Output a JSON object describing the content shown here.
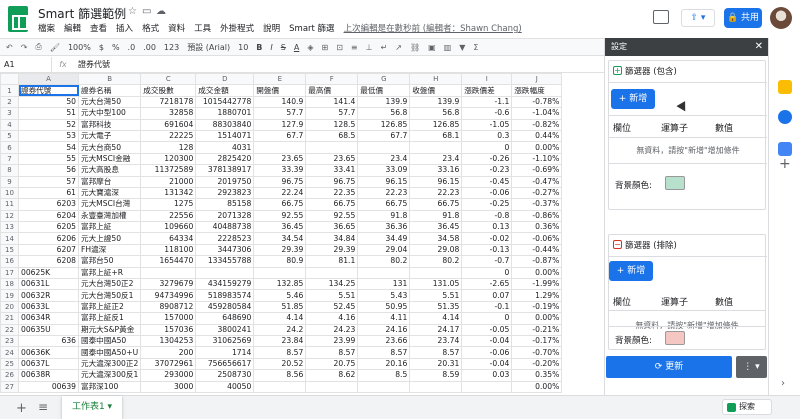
{
  "app": {
    "title": "Smart 篩選範例",
    "menus": [
      "檔案",
      "編輯",
      "查看",
      "插入",
      "格式",
      "資料",
      "工具",
      "外掛程式",
      "說明",
      "Smart 篩選"
    ],
    "last_edit": "上次編輯是在數秒前 (編輯者：Shawn Chang)",
    "share_label": "共用"
  },
  "toolbar": {
    "zoom": "100%",
    "currency": "$",
    "percent": "%",
    "dec1": ".0",
    "dec2": ".00",
    "numfmt": "123",
    "font": "預設 (Arial)",
    "font_size": "10",
    "bold": "B",
    "italic": "I",
    "strike": "S",
    "textcolor": "A"
  },
  "formula": {
    "cell": "A1",
    "fx": "fx",
    "value": "證券代號"
  },
  "grid": {
    "columns": [
      "A",
      "B",
      "C",
      "D",
      "E",
      "F",
      "G",
      "H",
      "I",
      "J"
    ],
    "rows": [
      [
        "1",
        "證券代號",
        "證券名稱",
        "成交股數",
        "成交金額",
        "開盤價",
        "最高價",
        "最低價",
        "收盤價",
        "漲跌價差",
        "漲跌幅度"
      ],
      [
        "2",
        "50",
        "元大台灣50",
        "7218178",
        "1015442778",
        "140.9",
        "141.4",
        "139.9",
        "139.9",
        "-1.1",
        "-0.78%"
      ],
      [
        "3",
        "51",
        "元大中型100",
        "32858",
        "1880701",
        "57.7",
        "57.7",
        "56.8",
        "56.8",
        "-0.6",
        "-1.04%"
      ],
      [
        "4",
        "52",
        "富邦科技",
        "691604",
        "88303840",
        "127.9",
        "128.5",
        "126.85",
        "126.85",
        "-1.05",
        "-0.82%"
      ],
      [
        "5",
        "53",
        "元大電子",
        "22225",
        "1514071",
        "67.7",
        "68.5",
        "67.7",
        "68.1",
        "0.3",
        "0.44%"
      ],
      [
        "6",
        "54",
        "元大台商50",
        "128",
        "4031",
        "",
        "",
        "",
        "",
        "0",
        "0.00%"
      ],
      [
        "7",
        "55",
        "元大MSCI金融",
        "120300",
        "2825420",
        "23.65",
        "23.65",
        "23.4",
        "23.4",
        "-0.26",
        "-1.10%"
      ],
      [
        "8",
        "56",
        "元大高股息",
        "11372589",
        "378138917",
        "33.39",
        "33.41",
        "33.09",
        "33.16",
        "-0.23",
        "-0.69%"
      ],
      [
        "9",
        "57",
        "富邦摩台",
        "21000",
        "2019750",
        "96.75",
        "96.75",
        "96.15",
        "96.15",
        "-0.45",
        "-0.47%"
      ],
      [
        "10",
        "61",
        "元大寶滬深",
        "131342",
        "2923823",
        "22.24",
        "22.35",
        "22.23",
        "22.23",
        "-0.06",
        "-0.27%"
      ],
      [
        "11",
        "6203",
        "元大MSCI台灣",
        "1275",
        "85158",
        "66.75",
        "66.75",
        "66.75",
        "66.75",
        "-0.25",
        "-0.37%"
      ],
      [
        "12",
        "6204",
        "永豐臺灣加權",
        "22556",
        "2071328",
        "92.55",
        "92.55",
        "91.8",
        "91.8",
        "-0.8",
        "-0.86%"
      ],
      [
        "13",
        "6205",
        "富邦上証",
        "109660",
        "40488738",
        "36.45",
        "36.65",
        "36.36",
        "36.45",
        "0.13",
        "0.36%"
      ],
      [
        "14",
        "6206",
        "元大上證50",
        "64334",
        "2228523",
        "34.54",
        "34.84",
        "34.49",
        "34.58",
        "-0.02",
        "-0.06%"
      ],
      [
        "15",
        "6207",
        "FH滬深",
        "118100",
        "3447306",
        "29.39",
        "29.39",
        "29.04",
        "29.08",
        "-0.13",
        "-0.44%"
      ],
      [
        "16",
        "6208",
        "富邦台50",
        "1654470",
        "133455788",
        "80.9",
        "81.1",
        "80.2",
        "80.2",
        "-0.7",
        "-0.87%"
      ],
      [
        "17",
        "00625K",
        "富邦上証+R",
        "",
        "",
        "",
        "",
        "",
        "",
        "0",
        "0.00%"
      ],
      [
        "18",
        "00631L",
        "元大台灣50正2",
        "3279679",
        "434159279",
        "132.85",
        "134.25",
        "131",
        "131.05",
        "-2.65",
        "-1.99%"
      ],
      [
        "19",
        "00632R",
        "元大台灣50反1",
        "94734996",
        "518983574",
        "5.46",
        "5.51",
        "5.43",
        "5.51",
        "0.07",
        "1.29%"
      ],
      [
        "20",
        "00633L",
        "富邦上証正2",
        "8908712",
        "459280584",
        "51.85",
        "52.45",
        "50.95",
        "51.35",
        "-0.1",
        "-0.19%"
      ],
      [
        "21",
        "00634R",
        "富邦上証反1",
        "157000",
        "648690",
        "4.14",
        "4.16",
        "4.11",
        "4.14",
        "0",
        "0.00%"
      ],
      [
        "22",
        "00635U",
        "期元大S&P黃金",
        "157036",
        "3800241",
        "24.2",
        "24.23",
        "24.16",
        "24.17",
        "-0.05",
        "-0.21%"
      ],
      [
        "23",
        "636",
        "國泰中國A50",
        "1304253",
        "31062569",
        "23.84",
        "23.99",
        "23.66",
        "23.74",
        "-0.04",
        "-0.17%"
      ],
      [
        "24",
        "00636K",
        "國泰中國A50+U",
        "200",
        "1714",
        "8.57",
        "8.57",
        "8.57",
        "8.57",
        "-0.06",
        "-0.70%"
      ],
      [
        "25",
        "00637L",
        "元大滬深300正2",
        "37072961",
        "756656617",
        "20.52",
        "20.75",
        "20.16",
        "20.31",
        "-0.04",
        "-0.20%"
      ],
      [
        "26",
        "00638R",
        "元大滬深300反1",
        "293000",
        "2508730",
        "8.56",
        "8.62",
        "8.5",
        "8.59",
        "0.03",
        "0.35%"
      ],
      [
        "27",
        "00639",
        "富邦深100",
        "3000",
        "40050",
        "",
        "",
        "",
        "",
        "",
        "0.00%"
      ]
    ]
  },
  "sheet": {
    "add": "+",
    "list": "≡",
    "tab_label": "工作表1 ▾",
    "explore": "探索"
  },
  "panel": {
    "title": "設定",
    "close": "✕",
    "include": {
      "title": "篩選器 (包含)",
      "add_label": "+ 新增",
      "headers": [
        "欄位",
        "運算子",
        "數值"
      ],
      "empty": "無資料，請按\"新增\"增加條件",
      "color_label": "背景顏色:",
      "color": "#b7e1cd"
    },
    "exclude": {
      "title": "篩選器 (排除)",
      "add_label": "+ 新增",
      "headers": [
        "欄位",
        "運算子",
        "數值"
      ],
      "empty": "無資料，請按\"新增\"增加條件",
      "color_label": "背景顏色:",
      "color": "#f4c7c3"
    },
    "update_label": "⟳ 更新",
    "more_label": "⋮ ▾"
  },
  "colors": {
    "accent": "#1a73e8",
    "sheets_green": "#0f9d58",
    "panel_header": "#3c4043"
  }
}
